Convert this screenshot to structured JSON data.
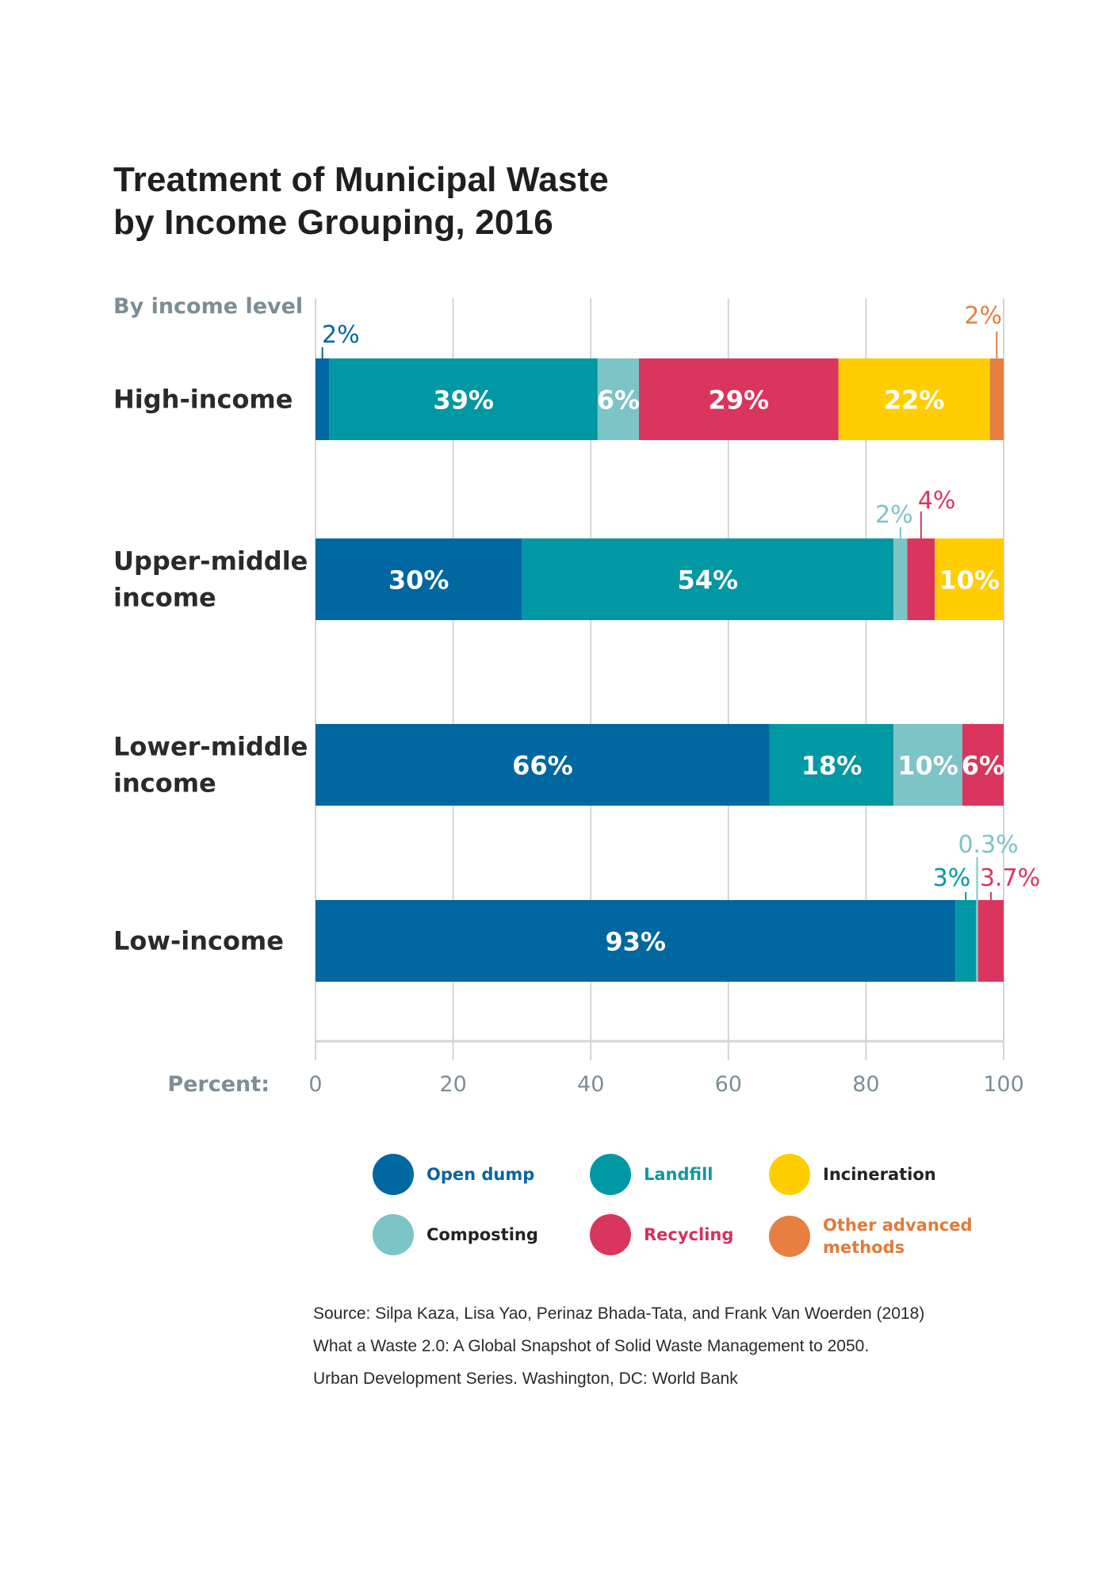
{
  "title": {
    "line1": "Treatment of Municipal Waste",
    "line2": "by Income Grouping, 2016"
  },
  "chart_data": {
    "type": "bar",
    "orientation": "horizontal",
    "stacked": true,
    "title": "Treatment of Municipal Waste by Income Grouping, 2016",
    "ylabel": "By income level",
    "xlabel": "Percent:",
    "xlim": [
      0,
      100
    ],
    "xticks": [
      0,
      20,
      40,
      60,
      80,
      100
    ],
    "grid": true,
    "legend_position": "bottom",
    "categories": [
      {
        "label_lines": [
          "High-income"
        ]
      },
      {
        "label_lines": [
          "Upper-middle",
          "income"
        ]
      },
      {
        "label_lines": [
          "Lower-middle",
          "income"
        ]
      },
      {
        "label_lines": [
          "Low-income"
        ]
      }
    ],
    "series": [
      {
        "key": "open_dump",
        "name": "Open dump",
        "color": "#0067a0",
        "label_color": "#0c64a0"
      },
      {
        "key": "landfill",
        "name": "Landfill",
        "color": "#0098a3",
        "label_color": "#12979f"
      },
      {
        "key": "composting",
        "name": "Composting",
        "color": "#7cc4c6",
        "label_color": "#232323"
      },
      {
        "key": "recycling",
        "name": "Recycling",
        "color": "#da355d",
        "label_color": "#d6315a"
      },
      {
        "key": "incineration",
        "name": "Incineration",
        "color": "#ffcd00",
        "label_color": "#232323"
      },
      {
        "key": "other",
        "name": "Other advanced methods",
        "name_lines": [
          "Other advanced",
          "methods"
        ],
        "color": "#e67f3f",
        "label_color": "#e27a3a"
      }
    ],
    "values": [
      {
        "open_dump": 2,
        "landfill": 39,
        "composting": 6,
        "recycling": 29,
        "incineration": 22,
        "other": 2
      },
      {
        "open_dump": 30,
        "landfill": 54,
        "composting": 2,
        "recycling": 4,
        "incineration": 10,
        "other": 0
      },
      {
        "open_dump": 66,
        "landfill": 18,
        "composting": 10,
        "recycling": 6,
        "incineration": 0,
        "other": 0
      },
      {
        "open_dump": 93,
        "landfill": 3,
        "composting": 0.3,
        "recycling": 3.7,
        "incineration": 0,
        "other": 0
      }
    ],
    "segment_labels": [
      [
        {
          "series": "open_dump",
          "text": "2%",
          "placement": "above"
        },
        {
          "series": "landfill",
          "text": "39%",
          "placement": "inside"
        },
        {
          "series": "composting",
          "text": "6%",
          "placement": "inside"
        },
        {
          "series": "recycling",
          "text": "29%",
          "placement": "inside"
        },
        {
          "series": "incineration",
          "text": "22%",
          "placement": "inside"
        },
        {
          "series": "other",
          "text": "2%",
          "placement": "above"
        }
      ],
      [
        {
          "series": "open_dump",
          "text": "30%",
          "placement": "inside"
        },
        {
          "series": "landfill",
          "text": "54%",
          "placement": "inside"
        },
        {
          "series": "composting",
          "text": "2%",
          "placement": "above"
        },
        {
          "series": "recycling",
          "text": "4%",
          "placement": "above"
        },
        {
          "series": "incineration",
          "text": "10%",
          "placement": "inside"
        }
      ],
      [
        {
          "series": "open_dump",
          "text": "66%",
          "placement": "inside"
        },
        {
          "series": "landfill",
          "text": "18%",
          "placement": "inside"
        },
        {
          "series": "composting",
          "text": "10%",
          "placement": "inside"
        },
        {
          "series": "recycling",
          "text": "6%",
          "placement": "inside"
        }
      ],
      [
        {
          "series": "open_dump",
          "text": "93%",
          "placement": "inside"
        },
        {
          "series": "landfill",
          "text": "3%",
          "placement": "above"
        },
        {
          "series": "composting",
          "text": "0.3%",
          "placement": "above"
        },
        {
          "series": "recycling",
          "text": "3.7%",
          "placement": "above"
        }
      ]
    ]
  },
  "legend": {
    "items": [
      {
        "label": "Open dump",
        "color": "#0067a0",
        "text_color": "#0c64a0"
      },
      {
        "label": "Landfill",
        "color": "#0098a3",
        "text_color": "#12979f"
      },
      {
        "label": "Incineration",
        "color": "#ffcd00",
        "text_color": "#232323"
      },
      {
        "label": "Composting",
        "color": "#7cc4c6",
        "text_color": "#232323"
      },
      {
        "label": "Recycling",
        "color": "#da355d",
        "text_color": "#d6315a"
      },
      {
        "label": "Other advanced methods",
        "label_line1": "Other advanced",
        "label_line2": "methods",
        "color": "#e67f3f",
        "text_color": "#e27a3a"
      }
    ]
  },
  "source": {
    "line1": "Source: Silpa Kaza, Lisa Yao, Perinaz Bhada-Tata, and Frank Van Woerden (2018)",
    "line2": "What a Waste 2.0: A Global Snapshot of Solid Waste Management to 2050.",
    "line3": "Urban Development Series. Washington, DC: World Bank"
  },
  "colors": {
    "title": "#1f1f1f",
    "axis_text": "#7d8d96",
    "grid": "#d4d4d4",
    "inside_label": "#ffffff"
  }
}
